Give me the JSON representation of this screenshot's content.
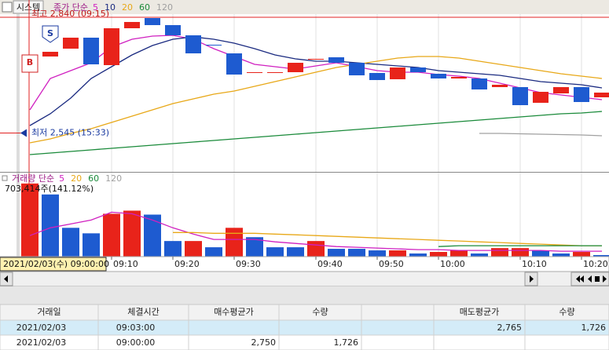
{
  "toolbar": {
    "tab": "시스템"
  },
  "time_axis": {
    "labels": [
      null,
      null,
      null,
      null,
      "09:10",
      null,
      null,
      "09:20",
      null,
      null,
      "09:30",
      null,
      null,
      null,
      "09:40",
      null,
      null,
      "09:50",
      null,
      null,
      "10:00",
      null,
      null,
      null,
      "10:10",
      null,
      null,
      "10:20",
      null
    ],
    "cursor_label": "2021/02/03(수) 09:00:00"
  },
  "price_chart": {
    "type": "candlestick",
    "legend_label": "종가 단순",
    "ylim": [
      2488,
      2848
    ],
    "up_color": "#e8231a",
    "down_color": "#1e5bd0",
    "open": [
      2700,
      2740,
      2760,
      2788,
      2718,
      2812,
      2838,
      2820,
      2794,
      2770,
      2748,
      2700,
      2700,
      2700,
      2734,
      2738,
      2724,
      2698,
      2682,
      2712,
      2696,
      2684,
      2684,
      2662,
      2662,
      2622,
      2646,
      2662,
      2636
    ],
    "high": 2840,
    "low": 2545,
    "close": [
      2740,
      2752,
      2788,
      2720,
      2812,
      2828,
      2820,
      2794,
      2748,
      2768,
      2694,
      2700,
      2700,
      2724,
      2734,
      2724,
      2692,
      2680,
      2712,
      2700,
      2684,
      2688,
      2656,
      2668,
      2616,
      2650,
      2662,
      2624,
      2648
    ],
    "series": [
      {
        "name": "5",
        "color": "#d020c0",
        "values": [
          2604,
          2684,
          2704,
          2724,
          2764,
          2784,
          2792,
          2794,
          2784,
          2760,
          2740,
          2720,
          2714,
          2708,
          2716,
          2724,
          2714,
          2704,
          2700,
          2700,
          2694,
          2690,
          2684,
          2672,
          2660,
          2648,
          2642,
          2636,
          2630
        ]
      },
      {
        "name": "10",
        "color": "#1a2a80",
        "values": [
          2564,
          2594,
          2634,
          2684,
          2714,
          2744,
          2768,
          2784,
          2790,
          2784,
          2774,
          2760,
          2744,
          2734,
          2728,
          2728,
          2724,
          2720,
          2716,
          2712,
          2704,
          2700,
          2696,
          2692,
          2684,
          2676,
          2672,
          2668,
          2660
        ]
      },
      {
        "name": "20",
        "color": "#e8a818",
        "values": [
          2520,
          2530,
          2544,
          2556,
          2572,
          2588,
          2604,
          2620,
          2632,
          2644,
          2652,
          2664,
          2676,
          2688,
          2700,
          2712,
          2720,
          2728,
          2736,
          2740,
          2740,
          2736,
          2728,
          2720,
          2712,
          2704,
          2696,
          2690,
          2684
        ]
      },
      {
        "name": "60",
        "color": "#1a8a3a",
        "values": [
          2490,
          2494,
          2498,
          2502,
          2506,
          2510,
          2514,
          2518,
          2522,
          2526,
          2530,
          2534,
          2538,
          2542,
          2546,
          2550,
          2554,
          2558,
          2562,
          2566,
          2570,
          2574,
          2578,
          2582,
          2586,
          2590,
          2594,
          2596,
          2600
        ]
      },
      {
        "name": "120",
        "color": "#a0a0a0",
        "values": [
          null,
          null,
          null,
          null,
          null,
          null,
          null,
          null,
          null,
          null,
          null,
          null,
          null,
          null,
          null,
          null,
          null,
          null,
          null,
          null,
          null,
          null,
          2544,
          2544,
          2543,
          2542,
          2541,
          2540,
          2538
        ]
      }
    ],
    "high_label": "최고 2,840 (09:15)",
    "low_label": "최저 2,545 (15:33)",
    "signals": [
      {
        "label": "B",
        "index": 0
      },
      {
        "label": "S",
        "index": 1
      }
    ]
  },
  "volume_chart": {
    "type": "bar",
    "legend_label": "거래량 단순",
    "ylim": [
      0,
      770000
    ],
    "cursor_value_label": "703,414주(141.12%)",
    "values": [
      703414,
      598000,
      277000,
      224000,
      412000,
      442000,
      404000,
      150000,
      150000,
      90000,
      277000,
      187000,
      90000,
      90000,
      150000,
      75000,
      75000,
      60000,
      60000,
      30000,
      45000,
      60000,
      30000,
      82000,
      82000,
      60000,
      30000,
      45000,
      15000
    ],
    "colors": [
      "#e8231a",
      "#1e5bd0",
      "#1e5bd0",
      "#1e5bd0",
      "#e8231a",
      "#e8231a",
      "#1e5bd0",
      "#1e5bd0",
      "#e8231a",
      "#1e5bd0",
      "#e8231a",
      "#1e5bd0",
      "#1e5bd0",
      "#1e5bd0",
      "#e8231a",
      "#1e5bd0",
      "#1e5bd0",
      "#1e5bd0",
      "#e8231a",
      "#1e5bd0",
      "#e8231a",
      "#e8231a",
      "#1e5bd0",
      "#e8231a",
      "#e8231a",
      "#1e5bd0",
      "#1e5bd0",
      "#e8231a",
      "#1e5bd0"
    ],
    "series": [
      {
        "name": "5",
        "color": "#d020c0",
        "values": [
          202000,
          277000,
          314000,
          352000,
          427000,
          412000,
          352000,
          277000,
          217000,
          165000,
          165000,
          165000,
          142000,
          127000,
          112000,
          97000,
          90000,
          82000,
          75000,
          67000,
          67000,
          60000,
          60000,
          60000,
          60000,
          60000,
          52000,
          52000,
          52000
        ]
      },
      {
        "name": "20",
        "color": "#e8a818",
        "values": [
          null,
          null,
          null,
          null,
          null,
          null,
          null,
          232000,
          232000,
          224000,
          224000,
          224000,
          217000,
          210000,
          202000,
          195000,
          187000,
          180000,
          172000,
          165000,
          157000,
          150000,
          142000,
          135000,
          127000,
          120000,
          112000,
          105000,
          105000
        ]
      },
      {
        "name": "60",
        "color": "#1a8a3a",
        "values": [
          null,
          null,
          null,
          null,
          null,
          null,
          null,
          null,
          null,
          null,
          null,
          null,
          null,
          null,
          null,
          null,
          null,
          null,
          null,
          null,
          97000,
          105000,
          105000,
          105000,
          105000,
          105000,
          105000,
          105000,
          105000
        ]
      }
    ],
    "extra_legend": {
      "name": "120",
      "color": "#a0a0a0"
    }
  },
  "table": {
    "headers": [
      "거래일",
      "체결시간",
      "매수평균가",
      "수량",
      "매도평균가",
      "수량"
    ],
    "rows": [
      {
        "date": "2021/02/03",
        "time": "09:03:00",
        "sell_avg": "2,765",
        "sell_qty": "1,726"
      },
      {
        "date": "2021/02/03",
        "time": "09:00:00",
        "buy_avg": "2,750",
        "buy_qty": "1,726"
      }
    ]
  }
}
